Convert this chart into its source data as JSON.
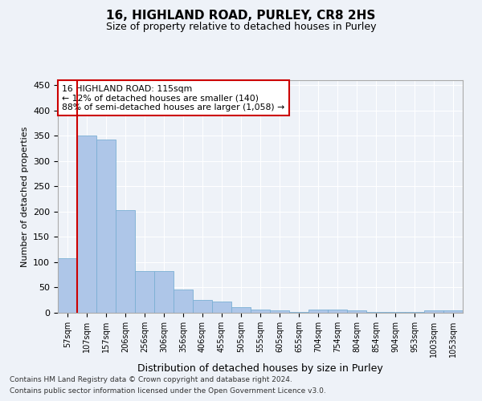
{
  "title1": "16, HIGHLAND ROAD, PURLEY, CR8 2HS",
  "title2": "Size of property relative to detached houses in Purley",
  "xlabel": "Distribution of detached houses by size in Purley",
  "ylabel": "Number of detached properties",
  "categories": [
    "57sqm",
    "107sqm",
    "157sqm",
    "206sqm",
    "256sqm",
    "306sqm",
    "356sqm",
    "406sqm",
    "455sqm",
    "505sqm",
    "555sqm",
    "605sqm",
    "655sqm",
    "704sqm",
    "754sqm",
    "804sqm",
    "854sqm",
    "904sqm",
    "953sqm",
    "1003sqm",
    "1053sqm"
  ],
  "values": [
    108,
    350,
    343,
    203,
    83,
    83,
    46,
    25,
    23,
    11,
    7,
    5,
    2,
    7,
    7,
    4,
    2,
    2,
    2,
    4,
    5
  ],
  "bar_color": "#aec6e8",
  "bar_edge_color": "#7aafd4",
  "highlight_line_color": "#cc0000",
  "annotation_line1": "16 HIGHLAND ROAD: 115sqm",
  "annotation_line2": "← 12% of detached houses are smaller (140)",
  "annotation_line3": "88% of semi-detached houses are larger (1,058) →",
  "annotation_box_color": "#ffffff",
  "annotation_box_edge_color": "#cc0000",
  "ylim": [
    0,
    460
  ],
  "yticks": [
    0,
    50,
    100,
    150,
    200,
    250,
    300,
    350,
    400,
    450
  ],
  "footnote1": "Contains HM Land Registry data © Crown copyright and database right 2024.",
  "footnote2": "Contains public sector information licensed under the Open Government Licence v3.0.",
  "bg_color": "#eef2f8",
  "plot_bg_color": "#eef2f8",
  "grid_color": "#ffffff",
  "title1_fontsize": 11,
  "title2_fontsize": 9
}
